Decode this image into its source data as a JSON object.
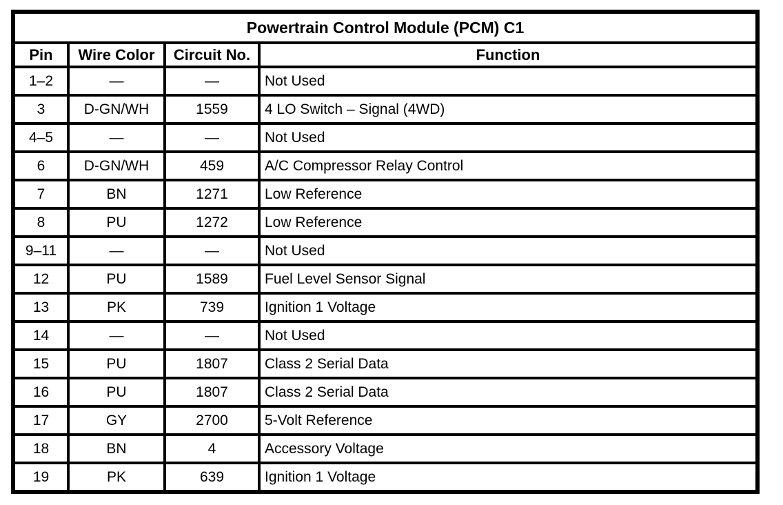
{
  "table": {
    "title": "Powertrain Control Module (PCM) C1",
    "columns": [
      "Pin",
      "Wire Color",
      "Circuit No.",
      "Function"
    ],
    "rows": [
      {
        "pin": "1–2",
        "wire_color": "—",
        "circuit_no": "—",
        "function": "Not Used"
      },
      {
        "pin": "3",
        "wire_color": "D-GN/WH",
        "circuit_no": "1559",
        "function": "4 LO Switch – Signal (4WD)"
      },
      {
        "pin": "4–5",
        "wire_color": "—",
        "circuit_no": "—",
        "function": "Not Used"
      },
      {
        "pin": "6",
        "wire_color": "D-GN/WH",
        "circuit_no": "459",
        "function": "A/C Compressor Relay Control"
      },
      {
        "pin": "7",
        "wire_color": "BN",
        "circuit_no": "1271",
        "function": "Low Reference"
      },
      {
        "pin": "8",
        "wire_color": "PU",
        "circuit_no": "1272",
        "function": "Low Reference"
      },
      {
        "pin": "9–11",
        "wire_color": "—",
        "circuit_no": "—",
        "function": "Not Used"
      },
      {
        "pin": "12",
        "wire_color": "PU",
        "circuit_no": "1589",
        "function": "Fuel Level Sensor Signal"
      },
      {
        "pin": "13",
        "wire_color": "PK",
        "circuit_no": "739",
        "function": "Ignition 1 Voltage"
      },
      {
        "pin": "14",
        "wire_color": "—",
        "circuit_no": "—",
        "function": "Not Used"
      },
      {
        "pin": "15",
        "wire_color": "PU",
        "circuit_no": "1807",
        "function": "Class 2 Serial Data"
      },
      {
        "pin": "16",
        "wire_color": "PU",
        "circuit_no": "1807",
        "function": "Class 2 Serial Data"
      },
      {
        "pin": "17",
        "wire_color": "GY",
        "circuit_no": "2700",
        "function": "5-Volt Reference"
      },
      {
        "pin": "18",
        "wire_color": "BN",
        "circuit_no": "4",
        "function": "Accessory Voltage"
      },
      {
        "pin": "19",
        "wire_color": "PK",
        "circuit_no": "639",
        "function": "Ignition 1 Voltage"
      }
    ],
    "colors": {
      "border": "#000000",
      "background": "#ffffff",
      "text": "#000000"
    }
  }
}
